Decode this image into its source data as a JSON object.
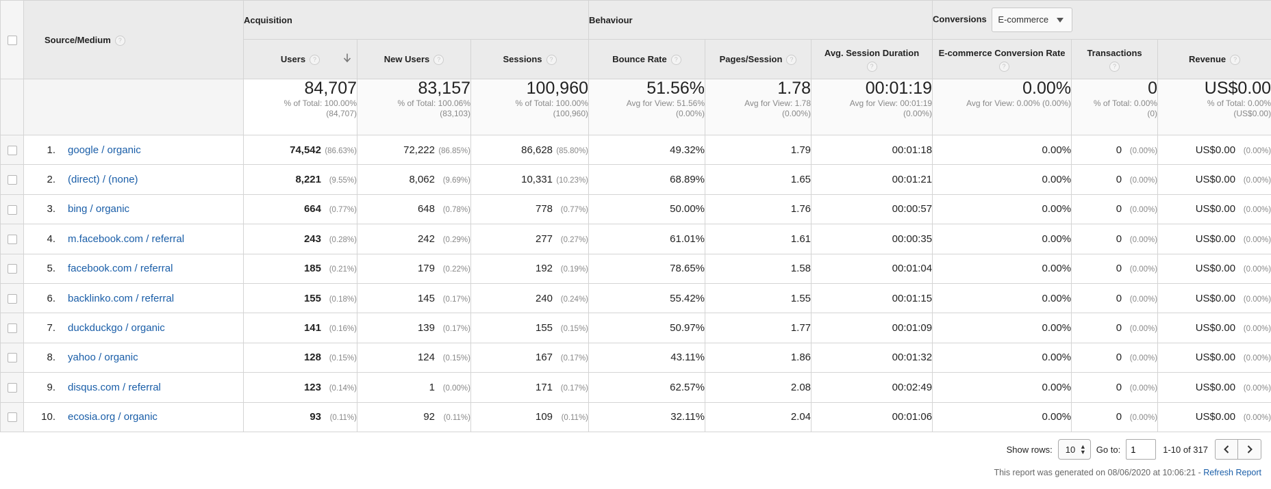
{
  "header": {
    "source_medium": "Source/Medium",
    "acquisition": "Acquisition",
    "behaviour": "Behaviour",
    "conversions": "Conversions",
    "conversions_select": "E-commerce",
    "help_glyph": "?",
    "columns": {
      "users": "Users",
      "new_users": "New Users",
      "sessions": "Sessions",
      "bounce_rate": "Bounce Rate",
      "pages_session": "Pages/Session",
      "avg_session_duration": "Avg. Session Duration",
      "ecommerce_conversion_rate": "E-commerce Conversion Rate",
      "transactions": "Transactions",
      "revenue": "Revenue"
    }
  },
  "totals": {
    "users": {
      "value": "84,707",
      "sub1": "% of Total: 100.00%",
      "sub2": "(84,707)"
    },
    "new_users": {
      "value": "83,157",
      "sub1": "% of Total: 100.06%",
      "sub2": "(83,103)"
    },
    "sessions": {
      "value": "100,960",
      "sub1": "% of Total: 100.00%",
      "sub2": "(100,960)"
    },
    "bounce_rate": {
      "value": "51.56%",
      "sub1": "Avg for View: 51.56%",
      "sub2": "(0.00%)"
    },
    "pages_session": {
      "value": "1.78",
      "sub1": "Avg for View: 1.78",
      "sub2": "(0.00%)"
    },
    "avg_session_duration": {
      "value": "00:01:19",
      "sub1": "Avg for View: 00:01:19",
      "sub2": "(0.00%)"
    },
    "ecommerce_conversion_rate": {
      "value": "0.00%",
      "sub1": "Avg for View: 0.00% (0.00%)",
      "sub2": ""
    },
    "transactions": {
      "value": "0",
      "sub1": "% of Total: 0.00%",
      "sub2": "(0)"
    },
    "revenue": {
      "value": "US$0.00",
      "sub1": "% of Total: 0.00%",
      "sub2": "(US$0.00)"
    }
  },
  "rows": [
    {
      "idx": "1.",
      "source": "google / organic",
      "users": "74,542",
      "users_pct": "(86.63%)",
      "new_users": "72,222",
      "new_users_pct": "(86.85%)",
      "sessions": "86,628",
      "sessions_pct": "(85.80%)",
      "bounce_rate": "49.32%",
      "pages_session": "1.79",
      "duration": "00:01:18",
      "conv_rate": "0.00%",
      "transactions": "0",
      "transactions_pct": "(0.00%)",
      "revenue": "US$0.00",
      "revenue_pct": "(0.00%)"
    },
    {
      "idx": "2.",
      "source": "(direct) / (none)",
      "users": "8,221",
      "users_pct": "(9.55%)",
      "new_users": "8,062",
      "new_users_pct": "(9.69%)",
      "sessions": "10,331",
      "sessions_pct": "(10.23%)",
      "bounce_rate": "68.89%",
      "pages_session": "1.65",
      "duration": "00:01:21",
      "conv_rate": "0.00%",
      "transactions": "0",
      "transactions_pct": "(0.00%)",
      "revenue": "US$0.00",
      "revenue_pct": "(0.00%)"
    },
    {
      "idx": "3.",
      "source": "bing / organic",
      "users": "664",
      "users_pct": "(0.77%)",
      "new_users": "648",
      "new_users_pct": "(0.78%)",
      "sessions": "778",
      "sessions_pct": "(0.77%)",
      "bounce_rate": "50.00%",
      "pages_session": "1.76",
      "duration": "00:00:57",
      "conv_rate": "0.00%",
      "transactions": "0",
      "transactions_pct": "(0.00%)",
      "revenue": "US$0.00",
      "revenue_pct": "(0.00%)"
    },
    {
      "idx": "4.",
      "source": "m.facebook.com / referral",
      "users": "243",
      "users_pct": "(0.28%)",
      "new_users": "242",
      "new_users_pct": "(0.29%)",
      "sessions": "277",
      "sessions_pct": "(0.27%)",
      "bounce_rate": "61.01%",
      "pages_session": "1.61",
      "duration": "00:00:35",
      "conv_rate": "0.00%",
      "transactions": "0",
      "transactions_pct": "(0.00%)",
      "revenue": "US$0.00",
      "revenue_pct": "(0.00%)"
    },
    {
      "idx": "5.",
      "source": "facebook.com / referral",
      "users": "185",
      "users_pct": "(0.21%)",
      "new_users": "179",
      "new_users_pct": "(0.22%)",
      "sessions": "192",
      "sessions_pct": "(0.19%)",
      "bounce_rate": "78.65%",
      "pages_session": "1.58",
      "duration": "00:01:04",
      "conv_rate": "0.00%",
      "transactions": "0",
      "transactions_pct": "(0.00%)",
      "revenue": "US$0.00",
      "revenue_pct": "(0.00%)"
    },
    {
      "idx": "6.",
      "source": "backlinko.com / referral",
      "users": "155",
      "users_pct": "(0.18%)",
      "new_users": "145",
      "new_users_pct": "(0.17%)",
      "sessions": "240",
      "sessions_pct": "(0.24%)",
      "bounce_rate": "55.42%",
      "pages_session": "1.55",
      "duration": "00:01:15",
      "conv_rate": "0.00%",
      "transactions": "0",
      "transactions_pct": "(0.00%)",
      "revenue": "US$0.00",
      "revenue_pct": "(0.00%)"
    },
    {
      "idx": "7.",
      "source": "duckduckgo / organic",
      "users": "141",
      "users_pct": "(0.16%)",
      "new_users": "139",
      "new_users_pct": "(0.17%)",
      "sessions": "155",
      "sessions_pct": "(0.15%)",
      "bounce_rate": "50.97%",
      "pages_session": "1.77",
      "duration": "00:01:09",
      "conv_rate": "0.00%",
      "transactions": "0",
      "transactions_pct": "(0.00%)",
      "revenue": "US$0.00",
      "revenue_pct": "(0.00%)"
    },
    {
      "idx": "8.",
      "source": "yahoo / organic",
      "users": "128",
      "users_pct": "(0.15%)",
      "new_users": "124",
      "new_users_pct": "(0.15%)",
      "sessions": "167",
      "sessions_pct": "(0.17%)",
      "bounce_rate": "43.11%",
      "pages_session": "1.86",
      "duration": "00:01:32",
      "conv_rate": "0.00%",
      "transactions": "0",
      "transactions_pct": "(0.00%)",
      "revenue": "US$0.00",
      "revenue_pct": "(0.00%)"
    },
    {
      "idx": "9.",
      "source": "disqus.com / referral",
      "users": "123",
      "users_pct": "(0.14%)",
      "new_users": "1",
      "new_users_pct": "(0.00%)",
      "sessions": "171",
      "sessions_pct": "(0.17%)",
      "bounce_rate": "62.57%",
      "pages_session": "2.08",
      "duration": "00:02:49",
      "conv_rate": "0.00%",
      "transactions": "0",
      "transactions_pct": "(0.00%)",
      "revenue": "US$0.00",
      "revenue_pct": "(0.00%)"
    },
    {
      "idx": "10.",
      "source": "ecosia.org / organic",
      "users": "93",
      "users_pct": "(0.11%)",
      "new_users": "92",
      "new_users_pct": "(0.11%)",
      "sessions": "109",
      "sessions_pct": "(0.11%)",
      "bounce_rate": "32.11%",
      "pages_session": "2.04",
      "duration": "00:01:06",
      "conv_rate": "0.00%",
      "transactions": "0",
      "transactions_pct": "(0.00%)",
      "revenue": "US$0.00",
      "revenue_pct": "(0.00%)"
    }
  ],
  "footer": {
    "show_rows_label": "Show rows:",
    "show_rows_value": "10",
    "goto_label": "Go to:",
    "goto_value": "1",
    "range": "1-10 of 317",
    "generated": "This report was generated on 08/06/2020 at 10:06:21 - ",
    "refresh": "Refresh Report"
  },
  "colors": {
    "link": "#1a5ea8",
    "header_bg": "#ebebeb",
    "border": "#d4d4d4"
  }
}
